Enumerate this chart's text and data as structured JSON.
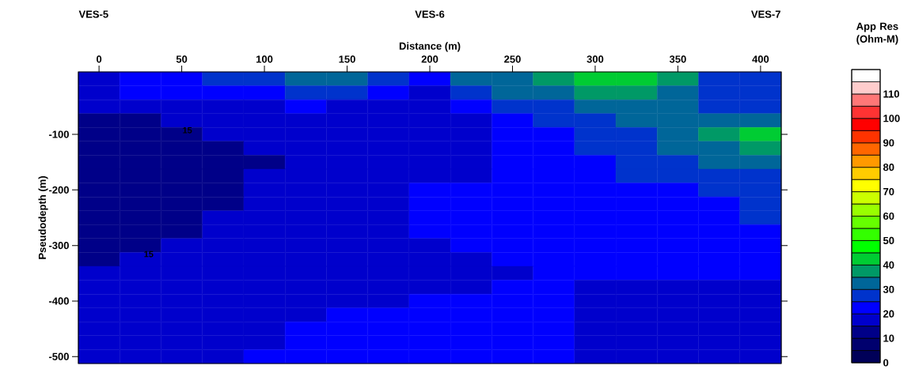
{
  "chart_data": {
    "type": "heatmap",
    "xlabel": "Distance (m)",
    "ylabel": "Pseudodepth (m)",
    "clabel": "App Res (Ohm-M)",
    "categories": [
      "0",
      null,
      "50",
      null,
      "100",
      null,
      "150",
      null,
      "200",
      null,
      "250",
      null,
      "300",
      null,
      "350",
      null,
      "400"
    ],
    "y_categories": [
      null,
      null,
      null,
      null,
      "-100",
      null,
      null,
      null,
      "-200",
      null,
      null,
      null,
      "-300",
      null,
      null,
      null,
      "-400",
      null,
      null,
      null,
      "-500"
    ],
    "clim": [
      0,
      120
    ],
    "cticks": [
      0,
      10,
      20,
      30,
      40,
      50,
      60,
      70,
      80,
      90,
      100,
      110
    ],
    "cells": [
      [
        17.5,
        22.5,
        22.5,
        27.5,
        27.5,
        32.5,
        32.5,
        27.5,
        22.5,
        32.5,
        32.5,
        37.5,
        42.5,
        42.5,
        37.5,
        27.5,
        27.5
      ],
      [
        17.5,
        22.5,
        22.5,
        22.5,
        22.5,
        27.5,
        27.5,
        22.5,
        17.5,
        27.5,
        32.5,
        32.5,
        37.5,
        37.5,
        32.5,
        27.5,
        27.5
      ],
      [
        17.5,
        17.5,
        17.5,
        17.5,
        17.5,
        22.5,
        17.5,
        17.5,
        17.5,
        22.5,
        27.5,
        27.5,
        32.5,
        32.5,
        32.5,
        27.5,
        27.5
      ],
      [
        12.5,
        12.5,
        17.5,
        17.5,
        17.5,
        17.5,
        17.5,
        17.5,
        17.5,
        17.5,
        22.5,
        27.5,
        27.5,
        32.5,
        32.5,
        32.5,
        32.5
      ],
      [
        12.5,
        12.5,
        12.5,
        17.5,
        17.5,
        17.5,
        17.5,
        17.5,
        17.5,
        17.5,
        22.5,
        22.5,
        27.5,
        27.5,
        32.5,
        37.5,
        42.5
      ],
      [
        12.5,
        12.5,
        12.5,
        12.5,
        17.5,
        17.5,
        17.5,
        17.5,
        17.5,
        17.5,
        22.5,
        22.5,
        27.5,
        27.5,
        32.5,
        32.5,
        37.5
      ],
      [
        12.5,
        12.5,
        12.5,
        12.5,
        12.5,
        17.5,
        17.5,
        17.5,
        17.5,
        17.5,
        22.5,
        22.5,
        22.5,
        27.5,
        27.5,
        32.5,
        32.5
      ],
      [
        12.5,
        12.5,
        12.5,
        12.5,
        17.5,
        17.5,
        17.5,
        17.5,
        17.5,
        17.5,
        22.5,
        22.5,
        22.5,
        27.5,
        27.5,
        27.5,
        27.5
      ],
      [
        12.5,
        12.5,
        12.5,
        12.5,
        17.5,
        17.5,
        17.5,
        17.5,
        22.5,
        22.5,
        22.5,
        22.5,
        22.5,
        22.5,
        22.5,
        27.5,
        27.5
      ],
      [
        12.5,
        12.5,
        12.5,
        12.5,
        17.5,
        17.5,
        17.5,
        17.5,
        22.5,
        22.5,
        22.5,
        22.5,
        22.5,
        22.5,
        22.5,
        22.5,
        27.5
      ],
      [
        12.5,
        12.5,
        12.5,
        17.5,
        17.5,
        17.5,
        17.5,
        17.5,
        22.5,
        22.5,
        22.5,
        22.5,
        22.5,
        22.5,
        22.5,
        22.5,
        27.5
      ],
      [
        12.5,
        12.5,
        12.5,
        17.5,
        17.5,
        17.5,
        17.5,
        17.5,
        22.5,
        22.5,
        22.5,
        22.5,
        22.5,
        22.5,
        22.5,
        22.5,
        22.5
      ],
      [
        12.5,
        12.5,
        17.5,
        17.5,
        17.5,
        17.5,
        17.5,
        17.5,
        17.5,
        22.5,
        22.5,
        22.5,
        22.5,
        22.5,
        22.5,
        22.5,
        22.5
      ],
      [
        12.5,
        17.5,
        17.5,
        17.5,
        17.5,
        17.5,
        17.5,
        17.5,
        17.5,
        17.5,
        22.5,
        22.5,
        22.5,
        22.5,
        22.5,
        22.5,
        22.5
      ],
      [
        17.5,
        17.5,
        17.5,
        17.5,
        17.5,
        17.5,
        17.5,
        17.5,
        17.5,
        17.5,
        17.5,
        22.5,
        22.5,
        22.5,
        22.5,
        22.5,
        22.5
      ],
      [
        17.5,
        17.5,
        17.5,
        17.5,
        17.5,
        17.5,
        17.5,
        17.5,
        17.5,
        17.5,
        22.5,
        22.5,
        17.5,
        17.5,
        17.5,
        17.5,
        17.5
      ],
      [
        17.5,
        17.5,
        17.5,
        17.5,
        17.5,
        17.5,
        17.5,
        17.5,
        22.5,
        22.5,
        22.5,
        22.5,
        17.5,
        17.5,
        17.5,
        17.5,
        17.5
      ],
      [
        17.5,
        17.5,
        17.5,
        17.5,
        17.5,
        17.5,
        22.5,
        22.5,
        22.5,
        22.5,
        22.5,
        22.5,
        17.5,
        17.5,
        17.5,
        17.5,
        17.5
      ],
      [
        17.5,
        17.5,
        17.5,
        17.5,
        17.5,
        22.5,
        22.5,
        22.5,
        22.5,
        22.5,
        22.5,
        22.5,
        17.5,
        17.5,
        17.5,
        17.5,
        17.5
      ],
      [
        17.5,
        17.5,
        17.5,
        17.5,
        17.5,
        22.5,
        22.5,
        22.5,
        22.5,
        22.5,
        22.5,
        22.5,
        17.5,
        17.5,
        17.5,
        17.5,
        17.5
      ],
      [
        17.5,
        17.5,
        17.5,
        17.5,
        22.5,
        22.5,
        22.5,
        22.5,
        22.5,
        22.5,
        22.5,
        22.5,
        17.5,
        17.5,
        17.5,
        17.5,
        17.5
      ]
    ],
    "annotations": [
      "VES-5",
      "VES-6",
      "VES-7",
      "15",
      "15"
    ]
  }
}
